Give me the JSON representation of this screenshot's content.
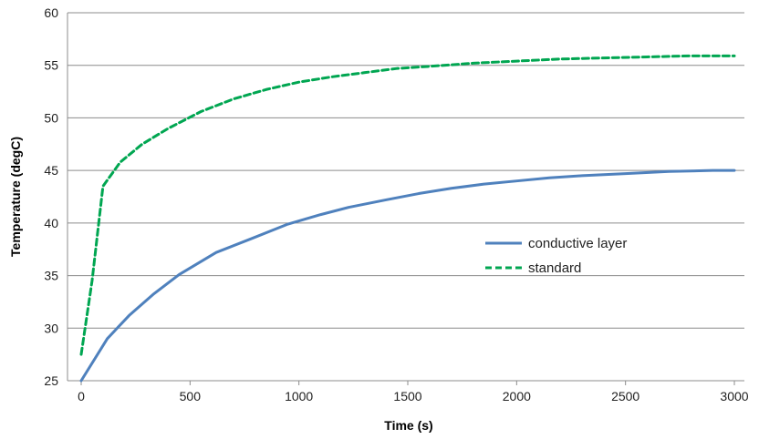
{
  "chart_data": {
    "type": "line",
    "title": "",
    "xlabel": "Time (s)",
    "ylabel": "Temperature (degC)",
    "xlim": [
      0,
      3000
    ],
    "ylim": [
      25,
      60
    ],
    "xticks": [
      0,
      500,
      1000,
      1500,
      2000,
      2500,
      3000
    ],
    "yticks": [
      25,
      30,
      35,
      40,
      45,
      50,
      55,
      60
    ],
    "xtick_labels": [
      "0",
      "500",
      "1000",
      "1500",
      "2000",
      "2500",
      "3000"
    ],
    "ytick_labels": [
      "25",
      "30",
      "35",
      "40",
      "45",
      "50",
      "55",
      "60"
    ],
    "grid": "horizontal",
    "legend_position": "right",
    "series": [
      {
        "name": "conductive layer",
        "color": "#4f81bd",
        "style": "solid",
        "points": [
          [
            0,
            25.0
          ],
          [
            120,
            29.0
          ],
          [
            220,
            31.2
          ],
          [
            330,
            33.2
          ],
          [
            450,
            35.1
          ],
          [
            620,
            37.2
          ],
          [
            780,
            38.5
          ],
          [
            950,
            39.9
          ],
          [
            1100,
            40.8
          ],
          [
            1230,
            41.5
          ],
          [
            1400,
            42.2
          ],
          [
            1550,
            42.8
          ],
          [
            1700,
            43.3
          ],
          [
            1850,
            43.7
          ],
          [
            2000,
            44.0
          ],
          [
            2150,
            44.3
          ],
          [
            2300,
            44.5
          ],
          [
            2500,
            44.7
          ],
          [
            2700,
            44.9
          ],
          [
            2900,
            45.0
          ],
          [
            3000,
            45.0
          ]
        ]
      },
      {
        "name": "standard",
        "color": "#00a651",
        "style": "dashed",
        "points": [
          [
            0,
            27.5
          ],
          [
            50,
            34.5
          ],
          [
            100,
            43.5
          ],
          [
            180,
            45.8
          ],
          [
            280,
            47.5
          ],
          [
            400,
            49.0
          ],
          [
            550,
            50.6
          ],
          [
            700,
            51.8
          ],
          [
            850,
            52.7
          ],
          [
            1000,
            53.4
          ],
          [
            1150,
            53.9
          ],
          [
            1300,
            54.3
          ],
          [
            1450,
            54.7
          ],
          [
            1600,
            54.9
          ],
          [
            1800,
            55.2
          ],
          [
            2000,
            55.4
          ],
          [
            2200,
            55.6
          ],
          [
            2400,
            55.7
          ],
          [
            2600,
            55.8
          ],
          [
            2800,
            55.9
          ],
          [
            3000,
            55.9
          ]
        ]
      }
    ]
  }
}
